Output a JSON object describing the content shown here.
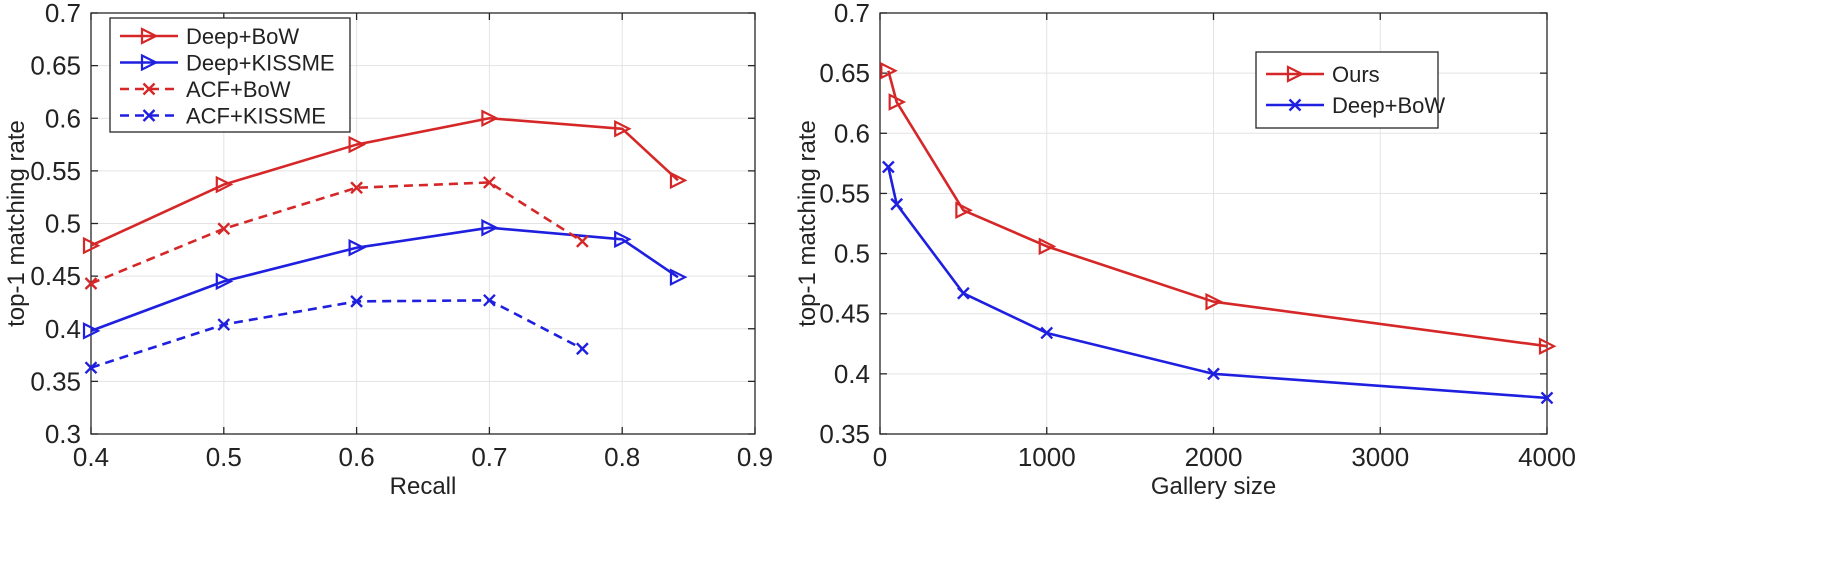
{
  "chart_data": [
    {
      "type": "line",
      "title": "",
      "xlabel": "Recall",
      "ylabel": "top-1 matching rate",
      "xlim": [
        0.4,
        0.9
      ],
      "ylim": [
        0.3,
        0.7
      ],
      "xticks": [
        "0.4",
        "0.5",
        "0.6",
        "0.7",
        "0.8",
        "0.9"
      ],
      "yticks": [
        "0.3",
        "0.35",
        "0.4",
        "0.45",
        "0.5",
        "0.55",
        "0.6",
        "0.65",
        "0.7"
      ],
      "grid": true,
      "legend_position": "top-left",
      "series": [
        {
          "name": "Deep+BoW",
          "color": "#d62728",
          "marker": "triangle-right",
          "dash": "solid",
          "x": [
            0.4,
            0.5,
            0.6,
            0.7,
            0.8,
            0.842
          ],
          "y": [
            0.479,
            0.537,
            0.575,
            0.6,
            0.59,
            0.541
          ]
        },
        {
          "name": "Deep+KISSME",
          "color": "#1f1fe0",
          "marker": "triangle-right",
          "dash": "solid",
          "x": [
            0.4,
            0.5,
            0.6,
            0.7,
            0.8,
            0.842
          ],
          "y": [
            0.398,
            0.445,
            0.477,
            0.496,
            0.485,
            0.449
          ]
        },
        {
          "name": "ACF+BoW",
          "color": "#d62728",
          "marker": "x",
          "dash": "dashed",
          "x": [
            0.4,
            0.5,
            0.6,
            0.7,
            0.77
          ],
          "y": [
            0.443,
            0.495,
            0.534,
            0.539,
            0.483
          ]
        },
        {
          "name": "ACF+KISSME",
          "color": "#1f1fe0",
          "marker": "x",
          "dash": "dashed",
          "x": [
            0.4,
            0.5,
            0.6,
            0.7,
            0.77
          ],
          "y": [
            0.363,
            0.404,
            0.426,
            0.427,
            0.381
          ]
        }
      ]
    },
    {
      "type": "line",
      "title": "",
      "xlabel": "Gallery size",
      "ylabel": "top-1 matching rate",
      "xlim": [
        0,
        4000
      ],
      "ylim": [
        0.35,
        0.7
      ],
      "xticks": [
        "0",
        "1000",
        "2000",
        "3000",
        "4000"
      ],
      "yticks": [
        "0.35",
        "0.4",
        "0.45",
        "0.5",
        "0.55",
        "0.6",
        "0.65",
        "0.7"
      ],
      "grid": true,
      "legend_position": "top-right",
      "series": [
        {
          "name": "Ours",
          "color": "#d62728",
          "marker": "triangle-right",
          "dash": "solid",
          "x": [
            50,
            100,
            500,
            1000,
            2000,
            4000
          ],
          "y": [
            0.652,
            0.626,
            0.536,
            0.506,
            0.46,
            0.423
          ]
        },
        {
          "name": "Deep+BoW",
          "color": "#1f1fe0",
          "marker": "x",
          "dash": "solid",
          "x": [
            50,
            100,
            500,
            1000,
            2000,
            4000
          ],
          "y": [
            0.572,
            0.541,
            0.467,
            0.434,
            0.4,
            0.38
          ]
        }
      ]
    }
  ]
}
